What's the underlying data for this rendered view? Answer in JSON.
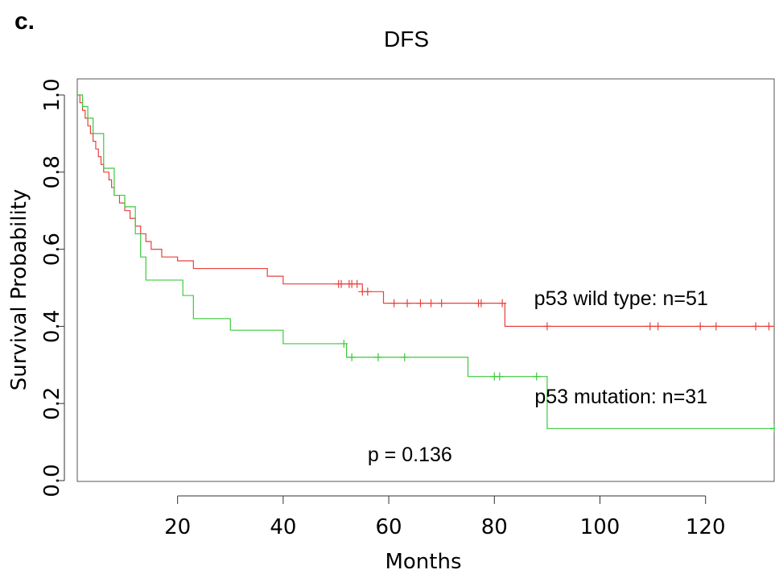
{
  "panel_label": "c.",
  "chart_data": {
    "type": "line",
    "title": "DFS",
    "xlabel": "Months",
    "ylabel": "Survival Probability",
    "xlim": [
      1,
      133
    ],
    "ylim": [
      0,
      1
    ],
    "xticks": [
      20,
      40,
      60,
      80,
      100,
      120
    ],
    "xtick_labels": [
      "20",
      "40",
      "60",
      "80",
      "100",
      "120"
    ],
    "yticks": [
      0,
      0.2,
      0.4,
      0.6,
      0.8,
      1.0
    ],
    "ytick_labels": [
      "0.0",
      "0.2",
      "0.4",
      "0.6",
      "0.8",
      "1.0"
    ],
    "grid": false,
    "series": [
      {
        "name": "p53 wild type: n=51",
        "color": "#e8413c",
        "step_points": [
          [
            1,
            1.0
          ],
          [
            1.5,
            0.98
          ],
          [
            2,
            0.96
          ],
          [
            2.5,
            0.94
          ],
          [
            3,
            0.92
          ],
          [
            3.5,
            0.9
          ],
          [
            4,
            0.88
          ],
          [
            4.5,
            0.86
          ],
          [
            5,
            0.84
          ],
          [
            5.5,
            0.82
          ],
          [
            6,
            0.8
          ],
          [
            7,
            0.78
          ],
          [
            7.5,
            0.76
          ],
          [
            8,
            0.74
          ],
          [
            9,
            0.72
          ],
          [
            10,
            0.7
          ],
          [
            11,
            0.68
          ],
          [
            12,
            0.66
          ],
          [
            13,
            0.64
          ],
          [
            14,
            0.62
          ],
          [
            15,
            0.6
          ],
          [
            17,
            0.58
          ],
          [
            20,
            0.57
          ],
          [
            23,
            0.55
          ],
          [
            37,
            0.53
          ],
          [
            40,
            0.51
          ],
          [
            55,
            0.49
          ],
          [
            59,
            0.46
          ],
          [
            82,
            0.4
          ],
          [
            133,
            0.4
          ]
        ],
        "censor_times": [
          50.5,
          51,
          52.5,
          53,
          54,
          55,
          56,
          61,
          63.5,
          66,
          68,
          70,
          77,
          77.5,
          81.5,
          90,
          109.5,
          111,
          119,
          122,
          129.5,
          132
        ]
      },
      {
        "name": "p53 mutation: n=31",
        "color": "#3cc93c",
        "step_points": [
          [
            1,
            1.0
          ],
          [
            2,
            0.97
          ],
          [
            3,
            0.94
          ],
          [
            4,
            0.9
          ],
          [
            6,
            0.81
          ],
          [
            8,
            0.74
          ],
          [
            10,
            0.71
          ],
          [
            12,
            0.64
          ],
          [
            13,
            0.58
          ],
          [
            14,
            0.52
          ],
          [
            21,
            0.48
          ],
          [
            23,
            0.42
          ],
          [
            30,
            0.39
          ],
          [
            40,
            0.355
          ],
          [
            52,
            0.32
          ],
          [
            75,
            0.27
          ],
          [
            90,
            0.135
          ],
          [
            133,
            0.135
          ]
        ],
        "censor_times": [
          51.5,
          53,
          58,
          63,
          80,
          81,
          88,
          133
        ]
      }
    ],
    "annotations": [
      {
        "text": "p53 wild type: n=51",
        "x": 104,
        "y": 0.455
      },
      {
        "text": "p53 mutation: n=31",
        "x": 104,
        "y": 0.2
      },
      {
        "text": "p = 0.136",
        "x": 64,
        "y": 0.05
      }
    ]
  }
}
